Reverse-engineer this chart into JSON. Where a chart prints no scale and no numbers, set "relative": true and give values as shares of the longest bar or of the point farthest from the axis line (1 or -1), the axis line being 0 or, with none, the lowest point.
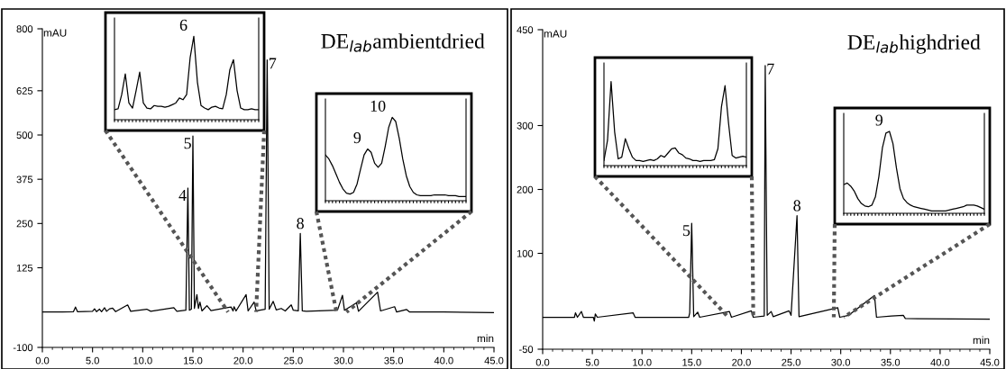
{
  "chart_data": [
    {
      "type": "line",
      "title": "DE$_{lab}$ambientdried",
      "xlabel": "min",
      "ylabel": "mAU",
      "x": [
        0,
        2,
        3.1,
        3.3,
        3.5,
        5.0,
        5.2,
        5.4,
        5.7,
        5.9,
        6.2,
        6.4,
        6.7,
        7.0,
        7.3,
        8.5,
        8.8,
        10.4,
        10.8,
        13.1,
        13.4,
        14.3,
        14.5,
        14.65,
        14.85,
        15.0,
        15.15,
        15.4,
        15.55,
        15.7,
        15.9,
        16.4,
        16.8,
        18.8,
        19.0,
        19.1,
        19.3,
        20.3,
        20.5,
        21.1,
        21.3,
        22.2,
        22.4,
        22.6,
        23.0,
        23.3,
        23.8,
        24.2,
        24.8,
        25.0,
        25.5,
        25.7,
        25.9,
        26.3,
        29.4,
        29.7,
        29.9,
        30.1,
        31.3,
        31.5,
        33.4,
        33.7,
        35.1,
        35.3,
        36.3,
        36.6,
        40,
        45
      ],
      "series": [
        {
          "color": "#000000",
          "values": [
            0,
            0,
            1,
            14,
            1,
            2,
            9,
            1,
            8,
            1,
            12,
            2,
            9,
            11,
            1,
            20,
            2,
            8,
            2,
            12,
            2,
            5,
            350,
            5,
            8,
            497,
            10,
            49,
            10,
            28,
            3,
            18,
            4,
            14,
            3,
            15,
            3,
            49,
            3,
            28,
            3,
            8,
            712,
            8,
            30,
            6,
            10,
            3,
            20,
            5,
            3,
            222,
            3,
            2,
            5,
            30,
            47,
            5,
            26,
            2,
            56,
            3,
            15,
            0,
            7,
            0,
            0,
            -2
          ]
        }
      ],
      "xlim": [
        0,
        45
      ],
      "ylim": [
        -100,
        800
      ],
      "xticks": [
        {
          "value": 0,
          "label": "0.0"
        },
        {
          "value": 5,
          "label": "5.0"
        },
        {
          "value": 10,
          "label": "10.0"
        },
        {
          "value": 15,
          "label": "15.0"
        },
        {
          "value": 20,
          "label": "20.0"
        },
        {
          "value": 25,
          "label": "25.0"
        },
        {
          "value": 30,
          "label": "30.0"
        },
        {
          "value": 35,
          "label": "35.0"
        },
        {
          "value": 40,
          "label": "40.0"
        },
        {
          "value": 45,
          "label": "45.0"
        }
      ],
      "yticks": [
        -100,
        125,
        250,
        375,
        500,
        625,
        800
      ],
      "annotations": [
        {
          "text": "4",
          "x": 14.5,
          "y": 350
        },
        {
          "text": "5",
          "x": 15.0,
          "y": 497
        },
        {
          "text": "7",
          "x": 22.4,
          "y": 712
        },
        {
          "text": "8",
          "x": 25.7,
          "y": 222
        }
      ]
    },
    {
      "type": "line",
      "relative": true,
      "categories": [
        null,
        null,
        null,
        null,
        null,
        null,
        null,
        null,
        null,
        null,
        null,
        null,
        null,
        null,
        null,
        null,
        null,
        null,
        null,
        null,
        null,
        null,
        null,
        null,
        null,
        null,
        null,
        null,
        null,
        null,
        null,
        null,
        null,
        null,
        null,
        null,
        null,
        null,
        null,
        null,
        null
      ],
      "series": [
        {
          "color": "#000000",
          "values": [
            0.12,
            0.13,
            0.3,
            0.55,
            0.2,
            0.14,
            0.35,
            0.57,
            0.2,
            0.14,
            0.13,
            0.17,
            0.16,
            0.16,
            0.15,
            0.16,
            0.18,
            0.2,
            0.26,
            0.24,
            0.3,
            0.75,
            1.0,
            0.45,
            0.17,
            0.14,
            0.12,
            0.15,
            0.16,
            0.14,
            0.13,
            0.3,
            0.6,
            0.72,
            0.35,
            0.14,
            0.12,
            0.12,
            0.13,
            0.12,
            0.12
          ]
        }
      ],
      "annotations": [
        "6"
      ]
    },
    {
      "type": "line",
      "relative": true,
      "categories": [
        null,
        null,
        null,
        null,
        null,
        null,
        null,
        null,
        null,
        null,
        null,
        null,
        null,
        null,
        null,
        null,
        null,
        null,
        null,
        null,
        null,
        null,
        null,
        null,
        null,
        null,
        null,
        null,
        null,
        null,
        null,
        null,
        null,
        null,
        null,
        null,
        null,
        null,
        null,
        null,
        null
      ],
      "series": [
        {
          "color": "#000000",
          "values": [
            0.55,
            0.5,
            0.42,
            0.32,
            0.22,
            0.14,
            0.09,
            0.08,
            0.1,
            0.2,
            0.38,
            0.55,
            0.62,
            0.58,
            0.45,
            0.4,
            0.45,
            0.65,
            0.88,
            1.0,
            0.95,
            0.75,
            0.5,
            0.3,
            0.17,
            0.1,
            0.07,
            0.06,
            0.06,
            0.06,
            0.06,
            0.07,
            0.07,
            0.07,
            0.07,
            0.06,
            0.06,
            0.06,
            0.05,
            0.05,
            0.05
          ]
        }
      ],
      "annotations": [
        "9",
        "10"
      ]
    },
    {
      "type": "line",
      "title": "DE$_{lab}$highdried",
      "xlabel": "min",
      "ylabel": "mAU",
      "x": [
        0,
        3.2,
        3.3,
        3.5,
        3.9,
        4.1,
        5.1,
        5.2,
        5.3,
        5.5,
        9.1,
        9.3,
        14.7,
        14.8,
        15.0,
        15.2,
        15.6,
        15.8,
        18.8,
        19.0,
        21.0,
        21.2,
        22.3,
        22.4,
        22.6,
        23.0,
        23.2,
        24.8,
        25.0,
        25.6,
        25.8,
        29.7,
        29.9,
        30.8,
        33.4,
        33.6,
        35.1,
        36.3,
        36.5,
        45
      ],
      "series": [
        {
          "color": "#000000",
          "values": [
            0,
            0,
            7,
            0,
            9,
            0,
            0,
            -6,
            5,
            0,
            7,
            0,
            0,
            7,
            147,
            1,
            8,
            0,
            9,
            0,
            10,
            0,
            2,
            394,
            3,
            9,
            1,
            10,
            3,
            159,
            1,
            15,
            0,
            3,
            34,
            0,
            2,
            3,
            -2,
            -3
          ]
        }
      ],
      "xlim": [
        0,
        45
      ],
      "ylim": [
        -50,
        450
      ],
      "xticks": [
        {
          "value": 0,
          "label": "0.0"
        },
        {
          "value": 5,
          "label": "5.0"
        },
        {
          "value": 10,
          "label": "10.0"
        },
        {
          "value": 15,
          "label": "15.0"
        },
        {
          "value": 20,
          "label": "20.0"
        },
        {
          "value": 25,
          "label": "25.0"
        },
        {
          "value": 30,
          "label": "30.0"
        },
        {
          "value": 35,
          "label": "35.0"
        },
        {
          "value": 40,
          "label": "40.0"
        },
        {
          "value": 45,
          "label": "45.0"
        }
      ],
      "yticks": [
        -50,
        100,
        200,
        300,
        450
      ],
      "annotations": [
        {
          "text": "5",
          "x": 15.0,
          "y": 147
        },
        {
          "text": "7",
          "x": 22.4,
          "y": 394
        },
        {
          "text": "8",
          "x": 25.6,
          "y": 159
        }
      ]
    },
    {
      "type": "line",
      "relative": true,
      "categories": [
        null,
        null,
        null,
        null,
        null,
        null,
        null,
        null,
        null,
        null,
        null,
        null,
        null,
        null,
        null,
        null,
        null,
        null,
        null,
        null,
        null,
        null,
        null,
        null,
        null,
        null,
        null,
        null,
        null,
        null,
        null,
        null,
        null,
        null,
        null,
        null,
        null,
        null,
        null,
        null,
        null
      ],
      "series": [
        {
          "color": "#000000",
          "values": [
            0.06,
            0.3,
            1.0,
            0.4,
            0.08,
            0.1,
            0.32,
            0.2,
            0.1,
            0.06,
            0.06,
            0.05,
            0.06,
            0.07,
            0.06,
            0.08,
            0.12,
            0.1,
            0.15,
            0.2,
            0.21,
            0.15,
            0.13,
            0.09,
            0.08,
            0.06,
            0.06,
            0.05,
            0.06,
            0.06,
            0.06,
            0.07,
            0.2,
            0.7,
            0.95,
            0.5,
            0.12,
            0.09,
            0.1,
            0.11,
            0.1
          ]
        }
      ]
    },
    {
      "type": "line",
      "relative": true,
      "categories": [
        null,
        null,
        null,
        null,
        null,
        null,
        null,
        null,
        null,
        null,
        null,
        null,
        null,
        null,
        null,
        null,
        null,
        null,
        null,
        null,
        null,
        null,
        null,
        null,
        null,
        null,
        null,
        null,
        null,
        null,
        null,
        null,
        null,
        null,
        null,
        null,
        null,
        null,
        null,
        null,
        null
      ],
      "series": [
        {
          "color": "#000000",
          "values": [
            0.35,
            0.37,
            0.33,
            0.27,
            0.18,
            0.12,
            0.09,
            0.08,
            0.1,
            0.2,
            0.45,
            0.8,
            0.98,
            1.0,
            0.85,
            0.55,
            0.3,
            0.18,
            0.13,
            0.1,
            0.08,
            0.07,
            0.06,
            0.05,
            0.04,
            0.03,
            0.03,
            0.03,
            0.03,
            0.03,
            0.04,
            0.05,
            0.06,
            0.07,
            0.08,
            0.1,
            0.1,
            0.1,
            0.09,
            0.07,
            0.05
          ]
        }
      ],
      "annotations": [
        "9"
      ]
    }
  ]
}
